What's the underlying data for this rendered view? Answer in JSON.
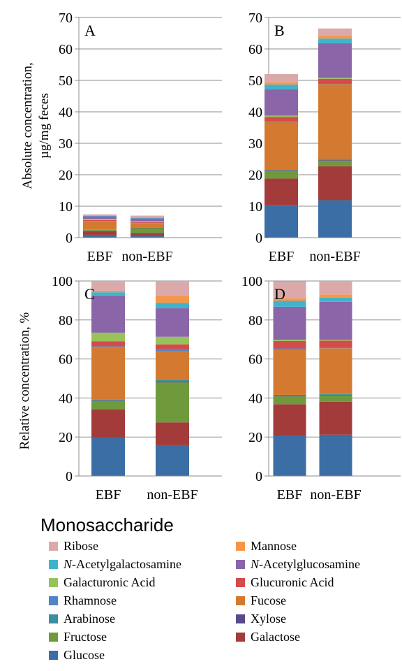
{
  "chart_data": [
    {
      "panel": "A",
      "type": "bar",
      "stacked": true,
      "ylabel": "Absolute concentration, µg/mg feces",
      "ylim": [
        0,
        70
      ],
      "yticks": [
        0,
        10,
        20,
        30,
        40,
        50,
        60,
        70
      ],
      "gridlines": true,
      "categories": [
        "EBF",
        "non-EBF"
      ],
      "series": [
        {
          "name": "Glucose",
          "values": [
            0.9,
            0.5
          ]
        },
        {
          "name": "Galactose",
          "values": [
            1.1,
            1.0
          ]
        },
        {
          "name": "Fructose",
          "values": [
            0.4,
            1.5
          ]
        },
        {
          "name": "Xylose",
          "values": [
            0.1,
            0.1
          ]
        },
        {
          "name": "Arabinose",
          "values": [
            0.1,
            0.1
          ]
        },
        {
          "name": "Fucose",
          "values": [
            2.6,
            1.4
          ]
        },
        {
          "name": "Rhamnose",
          "values": [
            0.1,
            0.1
          ]
        },
        {
          "name": "Glucuronic Acid",
          "values": [
            0.3,
            0.3
          ]
        },
        {
          "name": "Galacturonic Acid",
          "values": [
            0.4,
            0.3
          ]
        },
        {
          "name": "N-Acetylglucosamine",
          "values": [
            0.8,
            0.8
          ]
        },
        {
          "name": "N-Acetylgalactosamine",
          "values": [
            0.1,
            0.2
          ]
        },
        {
          "name": "Mannose",
          "values": [
            0.1,
            0.2
          ]
        },
        {
          "name": "Ribose",
          "values": [
            0.4,
            0.5
          ]
        }
      ]
    },
    {
      "panel": "B",
      "type": "bar",
      "stacked": true,
      "ylim": [
        0,
        70
      ],
      "yticks": [
        0,
        10,
        20,
        30,
        40,
        50,
        60,
        70
      ],
      "gridlines": true,
      "categories": [
        "EBF",
        "non-EBF"
      ],
      "series": [
        {
          "name": "Glucose",
          "values": [
            10.3,
            11.9
          ]
        },
        {
          "name": "Galactose",
          "values": [
            8.5,
            10.8
          ]
        },
        {
          "name": "Fructose",
          "values": [
            2.5,
            1.8
          ]
        },
        {
          "name": "Xylose",
          "values": [
            0.2,
            0.2
          ]
        },
        {
          "name": "Arabinose",
          "values": [
            0.2,
            0.3
          ]
        },
        {
          "name": "Fucose",
          "values": [
            15.0,
            23.8
          ]
        },
        {
          "name": "Rhamnose",
          "values": [
            0.4,
            0.2
          ]
        },
        {
          "name": "Glucuronic Acid",
          "values": [
            1.3,
            1.5
          ]
        },
        {
          "name": "Galacturonic Acid",
          "values": [
            0.4,
            0.3
          ]
        },
        {
          "name": "N-Acetylglucosamine",
          "values": [
            8.4,
            11.0
          ]
        },
        {
          "name": "N-Acetylgalactosamine",
          "values": [
            1.5,
            1.5
          ]
        },
        {
          "name": "Mannose",
          "values": [
            0.7,
            0.8
          ]
        },
        {
          "name": "Ribose",
          "values": [
            2.6,
            2.4
          ]
        }
      ]
    },
    {
      "panel": "C",
      "type": "bar",
      "stacked": true,
      "ylabel": "Relative concentration, %",
      "ylim": [
        0,
        100
      ],
      "yticks": [
        0,
        20,
        40,
        60,
        80,
        100
      ],
      "gridlines": true,
      "categories": [
        "EBF",
        "non-EBF"
      ],
      "series": [
        {
          "name": "Glucose",
          "values": [
            19.7,
            15.8
          ]
        },
        {
          "name": "Galactose",
          "values": [
            14.5,
            11.7
          ]
        },
        {
          "name": "Fructose",
          "values": [
            4.3,
            20.5
          ]
        },
        {
          "name": "Xylose",
          "values": [
            0.3,
            0.4
          ]
        },
        {
          "name": "Arabinose",
          "values": [
            0.4,
            1.0
          ]
        },
        {
          "name": "Fucose",
          "values": [
            27.0,
            14.6
          ]
        },
        {
          "name": "Rhamnose",
          "values": [
            0.3,
            0.8
          ]
        },
        {
          "name": "Glucuronic Acid",
          "values": [
            2.5,
            2.7
          ]
        },
        {
          "name": "Galacturonic Acid",
          "values": [
            4.5,
            3.9
          ]
        },
        {
          "name": "N-Acetylglucosamine",
          "values": [
            19.0,
            14.6
          ]
        },
        {
          "name": "N-Acetylgalactosamine",
          "values": [
            1.7,
            2.8
          ]
        },
        {
          "name": "Mannose",
          "values": [
            0.8,
            3.5
          ]
        },
        {
          "name": "Ribose",
          "values": [
            5.0,
            7.7
          ]
        }
      ]
    },
    {
      "panel": "D",
      "type": "bar",
      "stacked": true,
      "ylim": [
        0,
        100
      ],
      "yticks": [
        0,
        20,
        40,
        60,
        80,
        100
      ],
      "gridlines": true,
      "categories": [
        "EBF",
        "non-EBF"
      ],
      "series": [
        {
          "name": "Glucose",
          "values": [
            20.6,
            21.2
          ]
        },
        {
          "name": "Galactose",
          "values": [
            16.2,
            16.9
          ]
        },
        {
          "name": "Fructose",
          "values": [
            4.0,
            3.2
          ]
        },
        {
          "name": "Xylose",
          "values": [
            0.4,
            0.3
          ]
        },
        {
          "name": "Arabinose",
          "values": [
            0.4,
            0.4
          ]
        },
        {
          "name": "Fucose",
          "values": [
            23.0,
            23.5
          ]
        },
        {
          "name": "Rhamnose",
          "values": [
            0.8,
            0.3
          ]
        },
        {
          "name": "Glucuronic Acid",
          "values": [
            3.8,
            3.6
          ]
        },
        {
          "name": "Galacturonic Acid",
          "values": [
            0.7,
            0.5
          ]
        },
        {
          "name": "N-Acetylglucosamine",
          "values": [
            16.9,
            19.4
          ]
        },
        {
          "name": "N-Acetylgalactosamine",
          "values": [
            3.0,
            2.2
          ]
        },
        {
          "name": "Mannose",
          "values": [
            1.3,
            1.6
          ]
        },
        {
          "name": "Ribose",
          "values": [
            8.8,
            6.9
          ]
        }
      ]
    }
  ],
  "colors": {
    "Glucose": "#3a6ea5",
    "Galactose": "#a33b3b",
    "Fructose": "#6f9a3b",
    "Xylose": "#5a4a8a",
    "Arabinose": "#3a8fa0",
    "Fucose": "#d47a30",
    "Rhamnose": "#4d86c9",
    "Glucuronic Acid": "#d44b4b",
    "Galacturonic Acid": "#98c35a",
    "N-Acetylglucosamine": "#8a66a8",
    "N-Acetylgalactosamine": "#3fb3cc",
    "Mannose": "#f79646",
    "Ribose": "#dba9a9"
  },
  "legend": {
    "title": "Monosaccharide",
    "items": [
      {
        "name": "Ribose",
        "prefix": "",
        "text": "Ribose"
      },
      {
        "name": "Mannose",
        "prefix": "",
        "text": "Mannose"
      },
      {
        "name": "N-Acetylgalactosamine",
        "prefix": "N",
        "text": "-Acetylgalactosamine"
      },
      {
        "name": "N-Acetylglucosamine",
        "prefix": "N",
        "text": "-Acetylglucosamine"
      },
      {
        "name": "Galacturonic Acid",
        "prefix": "",
        "text": "Galacturonic Acid"
      },
      {
        "name": "Glucuronic Acid",
        "prefix": "",
        "text": "Glucuronic Acid"
      },
      {
        "name": "Rhamnose",
        "prefix": "",
        "text": "Rhamnose"
      },
      {
        "name": "Fucose",
        "prefix": "",
        "text": "Fucose"
      },
      {
        "name": "Arabinose",
        "prefix": "",
        "text": "Arabinose"
      },
      {
        "name": "Xylose",
        "prefix": "",
        "text": "Xylose"
      },
      {
        "name": "Fructose",
        "prefix": "",
        "text": "Fructose"
      },
      {
        "name": "Galactose",
        "prefix": "",
        "text": "Galactose"
      },
      {
        "name": "Glucose",
        "prefix": "",
        "text": "Glucose"
      }
    ]
  },
  "ylabels": {
    "top_line1": "Absolute concentration,",
    "top_line2": "µg/mg feces",
    "bottom": "Relative concentration, %"
  }
}
